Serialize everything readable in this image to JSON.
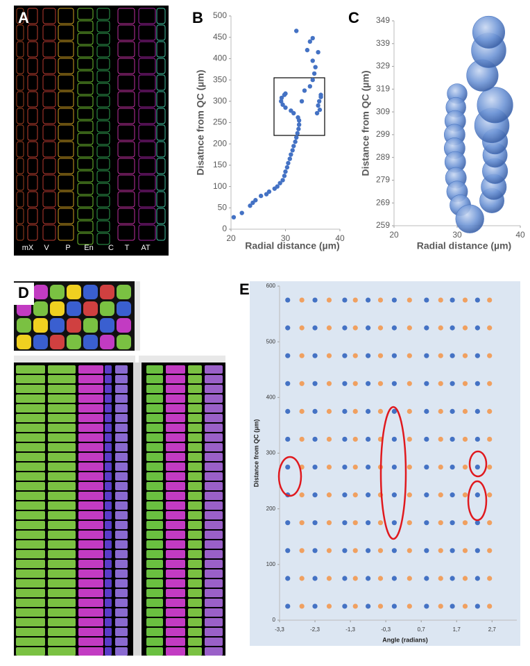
{
  "panel_labels": [
    "A",
    "B",
    "C",
    "D",
    "E"
  ],
  "panel_a": {
    "cell_labels": [
      "mX",
      "V",
      "P",
      "En",
      "C",
      "T",
      "AT"
    ]
  },
  "chart_data": [
    {
      "type": "scatter",
      "xlabel": "Radial distance (µm)",
      "ylabel": "Disatnce from QC (µm)",
      "color": "#4472c4",
      "xlim": [
        20,
        40
      ],
      "xticks": [
        20,
        30,
        40
      ],
      "ylim": [
        0,
        500
      ],
      "yticks": [
        0,
        50,
        100,
        150,
        200,
        250,
        300,
        350,
        400,
        450,
        500
      ],
      "x": [
        20.5,
        22,
        23.5,
        24,
        24.5,
        25.5,
        26.5,
        27,
        28,
        28.5,
        29,
        29.5,
        29.8,
        30,
        30.3,
        30.5,
        30.8,
        31,
        31.3,
        31.5,
        31.8,
        32,
        32.2,
        32.4,
        32.5,
        32.5,
        32.3,
        31.5,
        31,
        30,
        29.5,
        29.2,
        29.3,
        29.8,
        30,
        33,
        33.5,
        34.5,
        35,
        35.3,
        35.5,
        35,
        34,
        34.5,
        35,
        36,
        32,
        36.5,
        36.2,
        36,
        36.3,
        35.8,
        36.5
      ],
      "values": [
        28,
        38,
        55,
        62,
        68,
        78,
        82,
        88,
        95,
        100,
        108,
        115,
        125,
        135,
        145,
        155,
        165,
        175,
        185,
        195,
        205,
        215,
        225,
        235,
        245,
        255,
        262,
        272,
        278,
        285,
        292,
        300,
        308,
        315,
        318,
        300,
        325,
        335,
        350,
        365,
        380,
        395,
        420,
        440,
        448,
        415,
        465,
        315,
        300,
        290,
        280,
        272,
        310
      ]
    },
    {
      "type": "bubble",
      "xlabel": "Radial  distance (µm)",
      "ylabel": "Distance from QC (µm)",
      "color": "#4f79c2",
      "xlim": [
        20,
        40
      ],
      "xticks": [
        20,
        30,
        40
      ],
      "ylim": [
        259,
        349
      ],
      "yticks": [
        259,
        269,
        279,
        289,
        299,
        309,
        319,
        329,
        339,
        349
      ],
      "x": [
        30,
        29.8,
        29.7,
        29.6,
        29.6,
        29.7,
        29.8,
        30,
        30.5,
        32,
        35.5,
        35.8,
        36,
        36,
        36,
        35.5,
        36,
        34,
        35,
        35
      ],
      "values": [
        317,
        311,
        305,
        299,
        293,
        287,
        280,
        274,
        268,
        262,
        270,
        276,
        283,
        290,
        296,
        303,
        312,
        325,
        336,
        344
      ],
      "sizes": [
        1,
        1,
        1.1,
        1.1,
        1.1,
        1.1,
        1.1,
        1.1,
        1.1,
        2,
        1.5,
        1.6,
        1.6,
        1.5,
        1.6,
        3,
        3.2,
        2.5,
        3,
        2.6
      ]
    },
    {
      "type": "scatter",
      "xlabel": "Angle (radians)",
      "ylabel": "Distance from QC (µm)",
      "xlim": [
        -3.3,
        3.4
      ],
      "xticks": [
        {
          "value": -3.3,
          "label": "-3,3"
        },
        {
          "value": -2.3,
          "label": "-2,3"
        },
        {
          "value": -1.3,
          "label": "-1,3"
        },
        {
          "value": -0.3,
          "label": "-0,3"
        },
        {
          "value": 0.7,
          "label": "0,7"
        },
        {
          "value": 1.7,
          "label": "1,7"
        },
        {
          "value": 2.7,
          "label": "2,7"
        }
      ],
      "ylim": [
        0,
        600
      ],
      "yticks": [
        0,
        100,
        200,
        300,
        400,
        500,
        600
      ],
      "series": [
        {
          "color": "#4472c4",
          "x": [
            -3.07,
            -3.07,
            -3.07,
            -3.07,
            -3.07,
            -3.07,
            -3.07,
            -3.07,
            -3.07,
            -3.07,
            -3.07,
            -3.07,
            -2.3,
            -2.3,
            -2.3,
            -2.3,
            -2.3,
            -2.3,
            -2.3,
            -2.3,
            -2.3,
            -2.3,
            -2.3,
            -2.3,
            -1.46,
            -1.46,
            -1.46,
            -1.46,
            -1.46,
            -1.46,
            -1.46,
            -1.46,
            -1.46,
            -1.46,
            -1.46,
            -1.46,
            -0.8,
            -0.8,
            -0.8,
            -0.8,
            -0.8,
            -0.8,
            -0.8,
            -0.8,
            -0.8,
            -0.8,
            -0.8,
            -0.8,
            -0.06,
            -0.06,
            -0.06,
            -0.06,
            -0.06,
            -0.06,
            -0.06,
            -0.06,
            -0.06,
            -0.06,
            -0.06,
            -0.06,
            0.85,
            0.85,
            0.85,
            0.85,
            0.85,
            0.85,
            0.85,
            0.85,
            0.85,
            0.85,
            0.85,
            0.85,
            1.58,
            1.58,
            1.58,
            1.58,
            1.58,
            1.58,
            1.58,
            1.58,
            1.58,
            1.58,
            1.58,
            1.58,
            2.29,
            2.29,
            2.29,
            2.29,
            2.29,
            2.29,
            2.29,
            2.29,
            2.29,
            2.29,
            2.29,
            2.29
          ],
          "values": [
            25,
            75,
            125,
            175,
            225,
            275,
            325,
            375,
            425,
            475,
            525,
            575,
            25,
            75,
            125,
            175,
            225,
            275,
            325,
            375,
            425,
            475,
            525,
            575,
            25,
            75,
            125,
            175,
            225,
            275,
            325,
            375,
            425,
            475,
            525,
            575,
            25,
            75,
            125,
            175,
            225,
            275,
            325,
            375,
            425,
            475,
            525,
            575,
            25,
            75,
            125,
            175,
            225,
            275,
            325,
            375,
            425,
            475,
            525,
            575,
            25,
            75,
            125,
            175,
            225,
            275,
            325,
            375,
            425,
            475,
            525,
            575,
            25,
            75,
            125,
            175,
            225,
            275,
            325,
            375,
            425,
            475,
            525,
            575,
            25,
            75,
            125,
            175,
            225,
            275,
            325,
            375,
            425,
            475,
            525,
            575
          ]
        },
        {
          "color": "#f0a060",
          "x": [
            -2.67,
            -2.67,
            -2.67,
            -2.67,
            -2.67,
            -2.67,
            -2.67,
            -2.67,
            -2.67,
            -2.67,
            -2.67,
            -2.67,
            -1.9,
            -1.9,
            -1.9,
            -1.9,
            -1.9,
            -1.9,
            -1.9,
            -1.9,
            -1.9,
            -1.9,
            -1.9,
            -1.9,
            -1.16,
            -1.16,
            -1.16,
            -1.16,
            -1.16,
            -1.16,
            -1.16,
            -1.16,
            -1.16,
            -1.16,
            -1.16,
            -1.16,
            -0.45,
            -0.45,
            -0.45,
            -0.45,
            -0.45,
            -0.45,
            -0.45,
            -0.45,
            -0.45,
            -0.45,
            -0.45,
            -0.45,
            0.37,
            0.37,
            0.37,
            0.37,
            0.37,
            0.37,
            0.37,
            0.37,
            0.37,
            0.37,
            0.37,
            0.37,
            1.25,
            1.25,
            1.25,
            1.25,
            1.25,
            1.25,
            1.25,
            1.25,
            1.25,
            1.25,
            1.25,
            1.25,
            1.94,
            1.94,
            1.94,
            1.94,
            1.94,
            1.94,
            1.94,
            1.94,
            1.94,
            1.94,
            1.94,
            1.94,
            2.63,
            2.63,
            2.63,
            2.63,
            2.63,
            2.63,
            2.63,
            2.63,
            2.63,
            2.63,
            2.63,
            2.63
          ],
          "values": [
            25,
            75,
            125,
            175,
            225,
            275,
            325,
            375,
            425,
            475,
            525,
            575,
            25,
            75,
            125,
            175,
            225,
            275,
            325,
            375,
            425,
            475,
            525,
            575,
            25,
            75,
            125,
            175,
            225,
            275,
            325,
            375,
            425,
            475,
            525,
            575,
            25,
            75,
            125,
            175,
            225,
            275,
            325,
            375,
            425,
            475,
            525,
            575,
            25,
            75,
            125,
            175,
            225,
            275,
            325,
            375,
            425,
            475,
            525,
            575,
            25,
            75,
            125,
            175,
            225,
            275,
            325,
            375,
            425,
            475,
            525,
            575,
            25,
            75,
            125,
            175,
            225,
            275,
            325,
            375,
            425,
            475,
            525,
            575,
            25,
            75,
            125,
            175,
            225,
            275,
            325,
            375,
            425,
            475,
            525,
            575
          ]
        }
      ]
    }
  ]
}
